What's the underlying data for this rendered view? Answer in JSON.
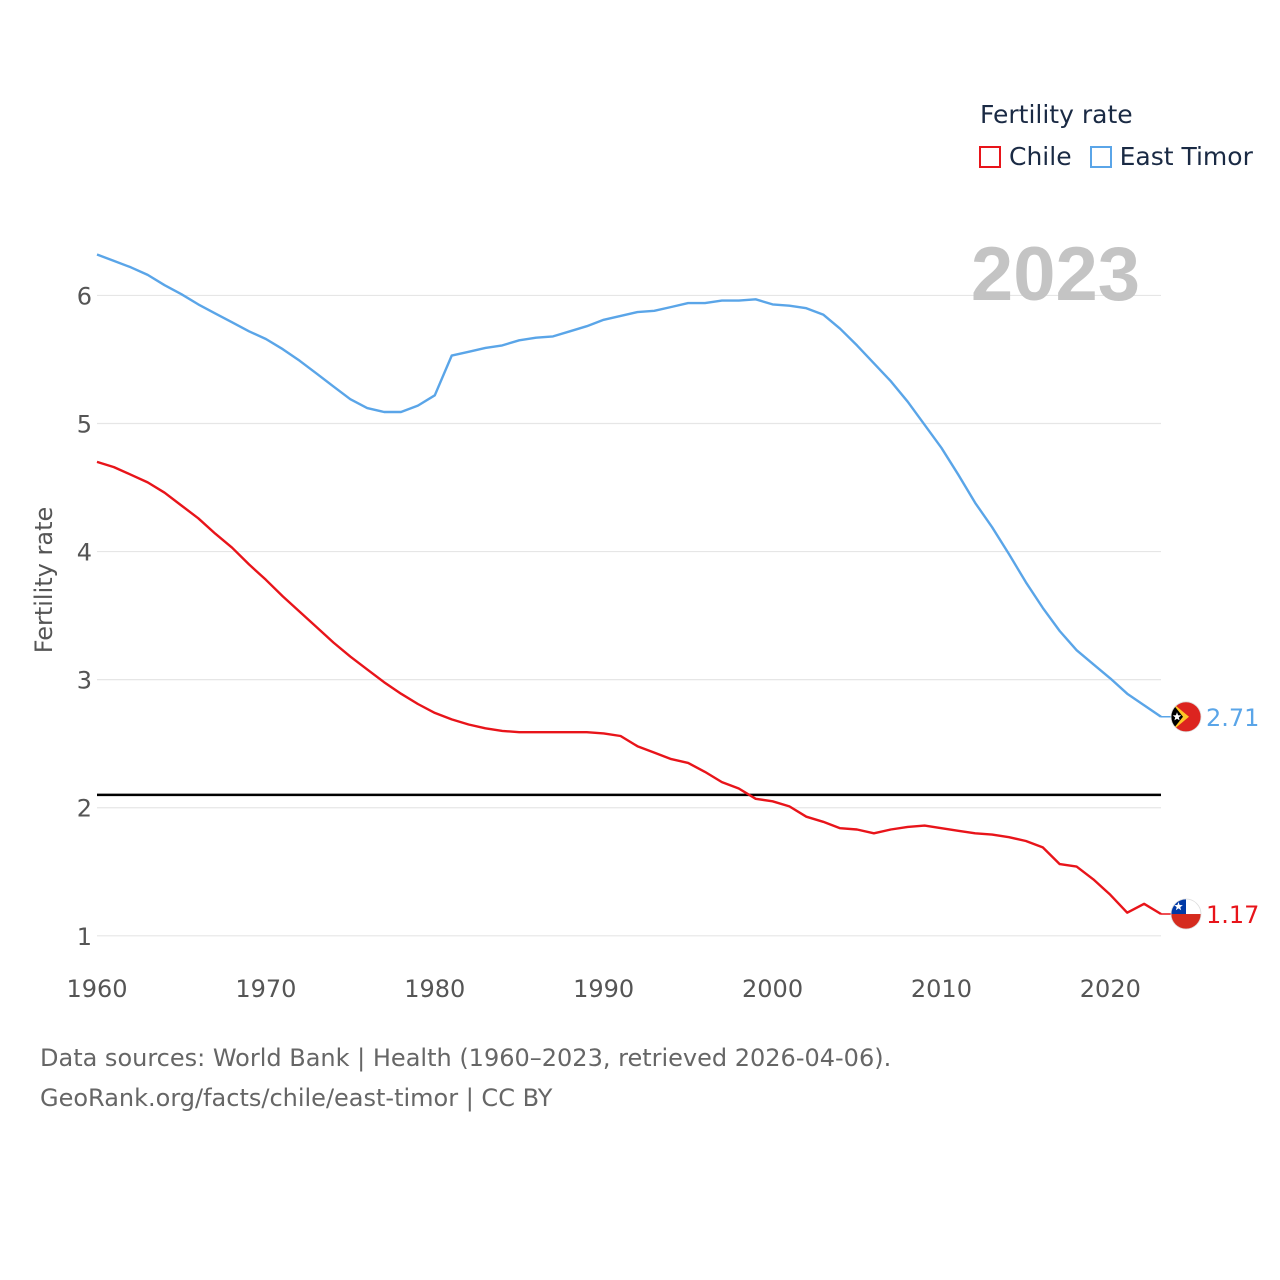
{
  "chart_data": {
    "type": "line",
    "title": "",
    "xlabel": "",
    "ylabel": "Fertility rate",
    "xlim": [
      1960,
      2023
    ],
    "ylim": [
      0.85,
      6.55
    ],
    "year_label": "2023",
    "x_ticks": [
      1960,
      1970,
      1980,
      1990,
      2000,
      2010,
      2020
    ],
    "x_tick_labels": [
      "1960",
      "1970",
      "1980",
      "1990",
      "2000",
      "2010",
      "2020"
    ],
    "y_ticks": [
      1,
      2,
      3,
      4,
      5,
      6
    ],
    "y_tick_labels": [
      "1",
      "2",
      "3",
      "4",
      "5",
      "6"
    ],
    "reference_line": 2.1,
    "legend_title": "Fertility rate",
    "x": [
      1960,
      1961,
      1962,
      1963,
      1964,
      1965,
      1966,
      1967,
      1968,
      1969,
      1970,
      1971,
      1972,
      1973,
      1974,
      1975,
      1976,
      1977,
      1978,
      1979,
      1980,
      1981,
      1982,
      1983,
      1984,
      1985,
      1986,
      1987,
      1988,
      1989,
      1990,
      1991,
      1992,
      1993,
      1994,
      1995,
      1996,
      1997,
      1998,
      1999,
      2000,
      2001,
      2002,
      2003,
      2004,
      2005,
      2006,
      2007,
      2008,
      2009,
      2010,
      2011,
      2012,
      2013,
      2014,
      2015,
      2016,
      2017,
      2018,
      2019,
      2020,
      2021,
      2022,
      2023
    ],
    "series": [
      {
        "name": "Chile",
        "color": "#e8141a",
        "end_label": "1.17",
        "flag": "chile",
        "values": [
          4.7,
          4.66,
          4.6,
          4.54,
          4.46,
          4.36,
          4.26,
          4.14,
          4.03,
          3.9,
          3.78,
          3.65,
          3.53,
          3.41,
          3.29,
          3.18,
          3.08,
          2.98,
          2.89,
          2.81,
          2.74,
          2.69,
          2.65,
          2.62,
          2.6,
          2.59,
          2.59,
          2.59,
          2.59,
          2.59,
          2.58,
          2.56,
          2.48,
          2.43,
          2.38,
          2.35,
          2.28,
          2.2,
          2.15,
          2.07,
          2.05,
          2.01,
          1.93,
          1.89,
          1.84,
          1.83,
          1.8,
          1.83,
          1.85,
          1.86,
          1.84,
          1.82,
          1.8,
          1.79,
          1.77,
          1.74,
          1.69,
          1.56,
          1.54,
          1.44,
          1.32,
          1.18,
          1.25,
          1.17
        ]
      },
      {
        "name": "East Timor",
        "color": "#5aa5e8",
        "end_label": "2.71",
        "flag": "east-timor",
        "values": [
          6.32,
          6.27,
          6.22,
          6.16,
          6.08,
          6.01,
          5.93,
          5.86,
          5.79,
          5.72,
          5.66,
          5.58,
          5.49,
          5.39,
          5.29,
          5.19,
          5.12,
          5.09,
          5.09,
          5.14,
          5.22,
          5.53,
          5.56,
          5.59,
          5.61,
          5.65,
          5.67,
          5.68,
          5.72,
          5.76,
          5.81,
          5.84,
          5.87,
          5.88,
          5.91,
          5.94,
          5.94,
          5.96,
          5.96,
          5.97,
          5.93,
          5.92,
          5.9,
          5.85,
          5.74,
          5.61,
          5.47,
          5.33,
          5.17,
          4.99,
          4.81,
          4.6,
          4.38,
          4.19,
          3.98,
          3.76,
          3.56,
          3.38,
          3.23,
          3.12,
          3.01,
          2.89,
          2.8,
          2.71
        ]
      }
    ]
  },
  "footer": {
    "line1": "Data sources: World Bank | Health (1960–2023, retrieved 2026-04-06).",
    "line2": "GeoRank.org/facts/chile/east-timor | CC BY"
  }
}
